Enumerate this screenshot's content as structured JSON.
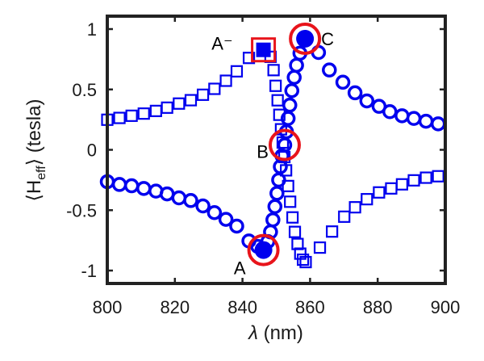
{
  "chart_data": {
    "type": "scatter",
    "title": "",
    "xlabel": "λ (nm)",
    "xlabel_symbol": "λ",
    "xlabel_unit": " (nm)",
    "ylabel": "⟨H_eff⟩ (tesla)",
    "ylabel_parts": {
      "open": "⟨H",
      "sub": "eff",
      "close": "⟩ (tesla)"
    },
    "xlim": [
      800,
      900
    ],
    "ylim": [
      -1.11,
      1.1
    ],
    "xticks": [
      800,
      820,
      840,
      860,
      880,
      900
    ],
    "xtick_labels": [
      "800",
      "820",
      "840",
      "860",
      "880",
      "900"
    ],
    "yticks": [
      -1,
      -0.5,
      0,
      0.5,
      1
    ],
    "ytick_labels": [
      "-1",
      "-0.5",
      "0",
      "0.5",
      "1"
    ],
    "grid": false,
    "colors": {
      "series": "#0000ee",
      "highlight": "#e8141b",
      "axis": "#222222"
    },
    "series": [
      {
        "name": "circles",
        "marker": "circle",
        "x": [
          800,
          803.6,
          807.2,
          810.8,
          814.4,
          817.7,
          821.2,
          824.7,
          828.3,
          831.7,
          835.1,
          838.3,
          841.9,
          844.5,
          847.5,
          848.3,
          849,
          849.6,
          850.2,
          850.7,
          851.2,
          851.7,
          852.5,
          853,
          853.5,
          854,
          854.6,
          855.3,
          856,
          857,
          862.5,
          865.7,
          869.7,
          873.3,
          876.8,
          880.4,
          883.6,
          887.2,
          890.7,
          894.3,
          897.9
        ],
        "y": [
          -0.264,
          -0.287,
          -0.298,
          -0.32,
          -0.342,
          -0.365,
          -0.398,
          -0.42,
          -0.465,
          -0.52,
          -0.576,
          -0.632,
          -0.755,
          -0.8,
          -0.76,
          -0.68,
          -0.58,
          -0.47,
          -0.36,
          -0.25,
          -0.14,
          -0.05,
          0.04,
          0.15,
          0.26,
          0.37,
          0.49,
          0.6,
          0.7,
          0.8,
          0.806,
          0.661,
          0.56,
          0.472,
          0.405,
          0.36,
          0.316,
          0.282,
          0.26,
          0.237,
          0.215
        ]
      },
      {
        "name": "squares",
        "marker": "square",
        "x": [
          800,
          803.6,
          807.2,
          810.8,
          814.4,
          817.7,
          821.2,
          824.7,
          828.3,
          831.7,
          835.1,
          838.3,
          841.9,
          848.3,
          849.2,
          849.8,
          850.4,
          850.9,
          851.4,
          851.9,
          852.4,
          852.9,
          853.5,
          854.1,
          854.8,
          855.5,
          856.3,
          857.1,
          857.9,
          858.7,
          862.9,
          866.5,
          870.1,
          873.3,
          876.8,
          880.4,
          884,
          887.2,
          890.7,
          894.3,
          897.9
        ],
        "y": [
          0.249,
          0.264,
          0.282,
          0.3,
          0.322,
          0.349,
          0.383,
          0.411,
          0.456,
          0.505,
          0.572,
          0.65,
          0.761,
          0.77,
          0.66,
          0.53,
          0.41,
          0.29,
          0.17,
          0.06,
          -0.06,
          -0.17,
          -0.3,
          -0.43,
          -0.56,
          -0.68,
          -0.78,
          -0.86,
          -0.91,
          -0.93,
          -0.81,
          -0.677,
          -0.554,
          -0.476,
          -0.409,
          -0.353,
          -0.32,
          -0.286,
          -0.253,
          -0.231,
          -0.219
        ]
      }
    ],
    "highlights": [
      {
        "label": "A⁻",
        "x": 846.2,
        "y": 0.828,
        "marker": "square",
        "filled": true
      },
      {
        "label": "A",
        "x": 846.2,
        "y": -0.83,
        "marker": "circle",
        "filled": true
      },
      {
        "label": "B",
        "x": 852.5,
        "y": 0.04,
        "marker": "circle",
        "filled": false
      },
      {
        "label": "C",
        "x": 858.5,
        "y": 0.92,
        "marker": "circle",
        "filled": true
      }
    ]
  }
}
